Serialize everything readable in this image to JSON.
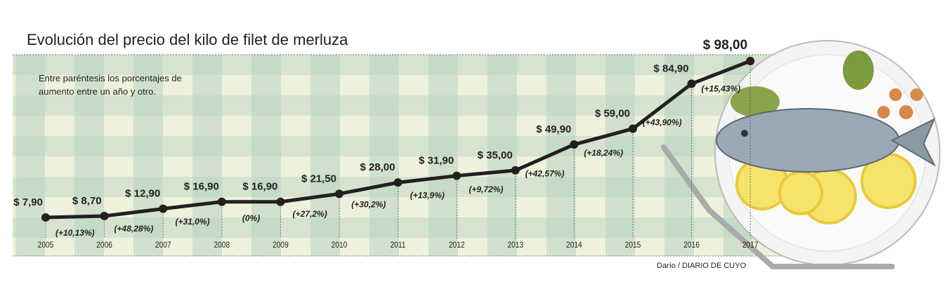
{
  "chart_data": {
    "type": "line",
    "title": "Evolución del precio del kilo de filet de merluza",
    "note": "Entre paréntesis los porcentajes de aumento entre un año y otro.",
    "source": "Darío / DIARIO DE CUYO",
    "categories": [
      "2005",
      "2006",
      "2007",
      "2008",
      "2009",
      "2010",
      "2011",
      "2012",
      "2013",
      "2014",
      "2015",
      "2016",
      "2017"
    ],
    "values": [
      7.9,
      8.7,
      12.9,
      16.9,
      16.9,
      21.5,
      28.0,
      31.9,
      35.0,
      49.9,
      59.0,
      84.9,
      98.0
    ],
    "value_labels": [
      "$ 7,90",
      "$ 8,70",
      "$ 12,90",
      "$ 16,90",
      "$ 16,90",
      "$ 21,50",
      "$ 28,00",
      "$ 31,90",
      "$ 35,00",
      "$ 49,90",
      "$ 59,00",
      "$ 84,90",
      "$ 98,00"
    ],
    "change_labels": [
      "(+10,13%)",
      "(+48,28%)",
      "(+31,0%)",
      "(0%)",
      "(+27,2%)",
      "(+30,2%)",
      "(+13,9%)",
      "(+9,72%)",
      "(+42,57%)",
      "(+18,24%)",
      "(+43,90%)",
      "(+15,43%)"
    ],
    "color": "#231f20"
  }
}
